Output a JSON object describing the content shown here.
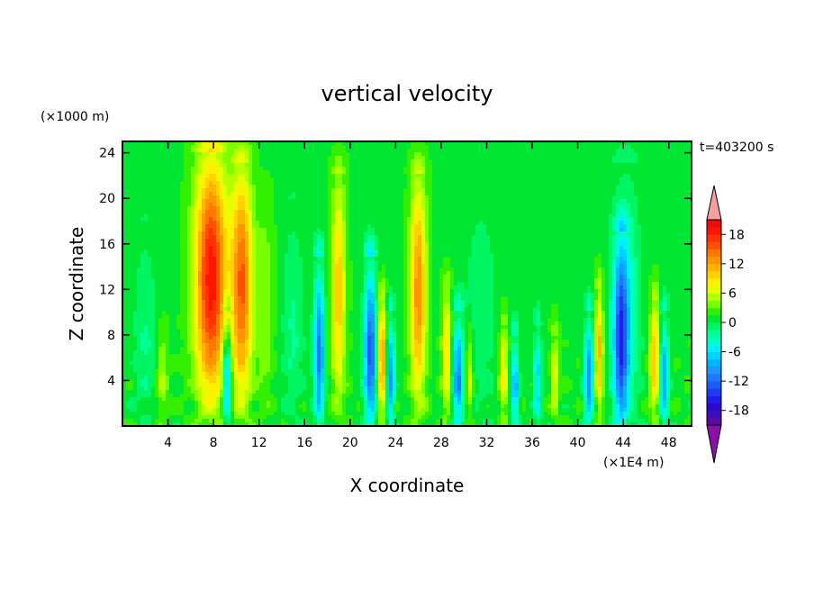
{
  "chart_data": {
    "type": "heatmap",
    "title": "vertical velocity",
    "xlabel": "X coordinate",
    "ylabel": "Z coordinate",
    "x_unit": "(×1E4 m)",
    "y_unit": "(×1000 m)",
    "time_label": "t=403200 s",
    "xlim": [
      0,
      50
    ],
    "ylim": [
      0,
      25
    ],
    "x_ticks": [
      4,
      8,
      12,
      16,
      20,
      24,
      28,
      32,
      36,
      40,
      44,
      48
    ],
    "y_ticks": [
      4,
      8,
      12,
      16,
      20,
      24
    ],
    "colorbar": {
      "levels": [
        -21,
        -19.5,
        -18,
        -16.5,
        -15,
        -13.5,
        -12,
        -10.5,
        -9,
        -7.5,
        -6,
        -4.5,
        -3,
        -1.5,
        0,
        1.5,
        3,
        4.5,
        6,
        7.5,
        9,
        10.5,
        12,
        13.5,
        15,
        16.5,
        18,
        19.5,
        21
      ],
      "colors": [
        "#5a0aa0",
        "#3a10b8",
        "#2a0ad2",
        "#1e1ee6",
        "#1e3cf0",
        "#1e5af5",
        "#1e78fa",
        "#1e96ff",
        "#00b4ff",
        "#00d2ff",
        "#00f0ff",
        "#00ffc8",
        "#00ff96",
        "#00f564",
        "#00e632",
        "#32f000",
        "#78ff00",
        "#b4ff00",
        "#e6ff00",
        "#fff000",
        "#ffd200",
        "#ffb400",
        "#ff9600",
        "#ff7800",
        "#ff5000",
        "#ff3200",
        "#ff1400",
        "#f00a0a"
      ],
      "tick_labels": [
        "18",
        "12",
        "6",
        "0",
        "-6",
        "-12",
        "-18"
      ],
      "tick_values": [
        18,
        12,
        6,
        0,
        -6,
        -12,
        -18
      ],
      "over_color": "#f4a0a0",
      "under_color": "#8a10a8"
    },
    "features": [
      {
        "x": 7.8,
        "z_top": 24,
        "amp": 18,
        "width": 1.4
      },
      {
        "x": 10.5,
        "z_top": 23,
        "amp": 14,
        "width": 0.9
      },
      {
        "x": 9.2,
        "z_top": 10,
        "amp": -12,
        "width": 0.4
      },
      {
        "x": 17.3,
        "z_top": 15,
        "amp": -13,
        "width": 0.45
      },
      {
        "x": 19,
        "z_top": 22,
        "amp": 9,
        "width": 0.6
      },
      {
        "x": 21.8,
        "z_top": 15,
        "amp": -15,
        "width": 0.55
      },
      {
        "x": 22.8,
        "z_top": 11,
        "amp": 12,
        "width": 0.4
      },
      {
        "x": 23.6,
        "z_top": 10,
        "amp": -11,
        "width": 0.35
      },
      {
        "x": 26,
        "z_top": 22,
        "amp": 12,
        "width": 0.7
      },
      {
        "x": 28.5,
        "z_top": 12,
        "amp": 8,
        "width": 0.4
      },
      {
        "x": 29.5,
        "z_top": 10,
        "amp": -12,
        "width": 0.45
      },
      {
        "x": 30.5,
        "z_top": 8,
        "amp": 6,
        "width": 0.35
      },
      {
        "x": 33.5,
        "z_top": 9,
        "amp": 7,
        "width": 0.4
      },
      {
        "x": 34.5,
        "z_top": 8,
        "amp": -10,
        "width": 0.35
      },
      {
        "x": 36.5,
        "z_top": 9,
        "amp": -8,
        "width": 0.35
      },
      {
        "x": 38,
        "z_top": 8,
        "amp": 6,
        "width": 0.35
      },
      {
        "x": 41,
        "z_top": 10,
        "amp": -12,
        "width": 0.4
      },
      {
        "x": 41.9,
        "z_top": 12,
        "amp": 10,
        "width": 0.35
      },
      {
        "x": 43.8,
        "z_top": 17,
        "amp": -13,
        "width": 0.6
      },
      {
        "x": 44.2,
        "z_top": 23,
        "amp": -6,
        "width": 1.2
      },
      {
        "x": 46.8,
        "z_top": 11,
        "amp": 10,
        "width": 0.45
      },
      {
        "x": 47.6,
        "z_top": 10,
        "amp": -11,
        "width": 0.4
      },
      {
        "x": 12.5,
        "z_top": 20,
        "amp": 3,
        "width": 0.8
      },
      {
        "x": 15,
        "z_top": 20,
        "amp": -3,
        "width": 1.0
      },
      {
        "x": 2.0,
        "z_top": 18,
        "amp": -3,
        "width": 1.0
      },
      {
        "x": 3.5,
        "z_top": 8,
        "amp": 4,
        "width": 0.5
      },
      {
        "x": 31.5,
        "z_top": 22,
        "amp": -2.5,
        "width": 1.5
      }
    ]
  }
}
